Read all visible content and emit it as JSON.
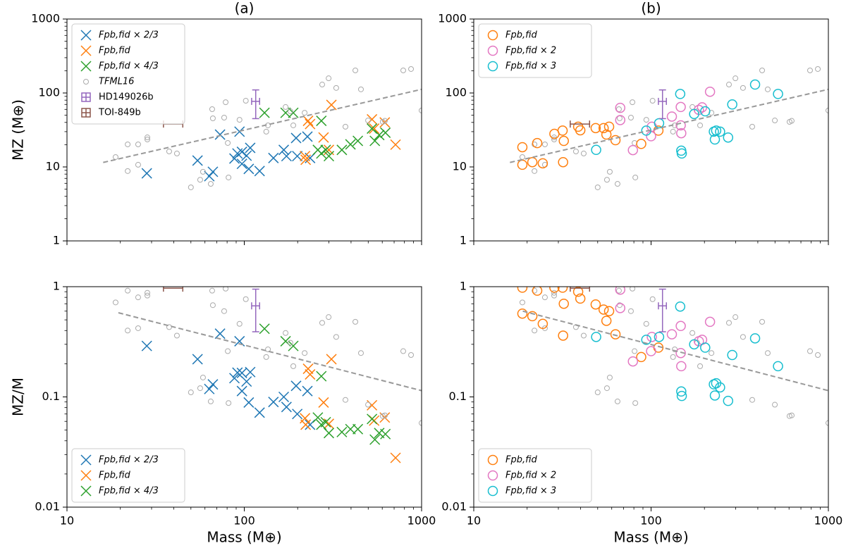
{
  "chart_data": [
    {
      "type": "scatter",
      "title": "(a)",
      "ylabel": "MZ (M⊕)",
      "log_x": true,
      "log_y": true,
      "xlim": [
        10,
        1000
      ],
      "xticks": [
        10,
        100,
        1000
      ],
      "ylim": [
        1,
        1000
      ],
      "yticks": [
        1,
        10,
        100,
        1000
      ],
      "show_xtick_labels": false,
      "legend": "upper left",
      "series": [
        {
          "name": "Fpb,fid × 2/3",
          "color": "#1f77b4",
          "marker": "x",
          "x": [
            28.2,
            54.5,
            63.5,
            66.5,
            73,
            94,
            88,
            91.5,
            97,
            97,
            103,
            108,
            106,
            122,
            146,
            167,
            173,
            196,
            227,
            235,
            199
          ],
          "values": [
            8.2,
            12.2,
            7.5,
            8.6,
            27.4,
            30,
            13,
            15.2,
            16,
            11,
            14.2,
            18.1,
            9.4,
            8.8,
            13.2,
            17,
            14,
            24.6,
            25.7,
            13.2,
            14
          ]
        },
        {
          "name": "Fpb,fid",
          "color": "#ff7f0e",
          "marker": "x",
          "x": [
            220,
            222,
            229,
            235,
            280,
            310,
            300,
            525,
            540,
            620,
            713
          ],
          "values": [
            14,
            12.5,
            42,
            38,
            25,
            69,
            17,
            44,
            33,
            40,
            20
          ]
        },
        {
          "name": "Fpb,fid × 4/3",
          "color": "#2ca02c",
          "marker": "x",
          "x": [
            130,
            171,
            189,
            272,
            260,
            272,
            288,
            300,
            355,
            397,
            437,
            525,
            577,
            625,
            545
          ],
          "values": [
            54,
            54,
            54,
            42,
            17,
            15.2,
            17,
            14,
            17,
            20.2,
            22.5,
            33,
            27,
            29,
            22.5
          ]
        },
        {
          "name": "TFML16",
          "color": "#aaaaaa",
          "marker": "dot",
          "x": [
            18.8,
            22,
            22,
            25.2,
            25.2,
            28.4,
            28.4,
            37.7,
            41.7,
            50,
            56.4,
            58.5,
            64.7,
            65.9,
            66.5,
            77,
            78.5,
            80.7,
            81.5,
            94,
            102,
            133,
            136,
            171,
            182,
            189,
            219,
            275,
            299,
            330,
            372,
            423,
            455,
            499,
            604,
            621,
            788,
            872,
            1000
          ],
          "values": [
            13.6,
            20.2,
            8.8,
            10.7,
            20.2,
            25.1,
            23.5,
            16.2,
            15.2,
            5.3,
            6.7,
            8.6,
            5.9,
            60.4,
            45.4,
            46.4,
            75,
            21.1,
            7.2,
            43.4,
            78.5,
            30,
            36.5,
            64.6,
            56.5,
            36.5,
            54,
            130,
            158,
            117,
            35,
            202,
            112,
            42.5,
            40.7,
            42,
            202,
            211,
            58
          ]
        },
        {
          "name": "HD149026b",
          "color": "#9467bd",
          "marker": "errorbar",
          "x": [
            116
          ],
          "values": [
            77
          ],
          "y_low": [
            45
          ],
          "y_high": [
            110
          ],
          "x_low": [
            110
          ],
          "x_high": [
            122
          ]
        },
        {
          "name": "TOI-849b",
          "color": "#8c564b",
          "marker": "errorbar",
          "x": [
            40
          ],
          "values": [
            38
          ],
          "x_low": [
            35
          ],
          "x_high": [
            45
          ]
        },
        {
          "color": "#999999",
          "marker": "dashed-line",
          "x": [
            16,
            1000
          ],
          "values": [
            11.5,
            112
          ]
        }
      ]
    },
    {
      "type": "scatter",
      "title": "(b)",
      "log_x": true,
      "log_y": true,
      "xlim": [
        10,
        1000
      ],
      "xticks": [
        10,
        100,
        1000
      ],
      "ylim": [
        1,
        1000
      ],
      "yticks": [
        1,
        10,
        100,
        1000
      ],
      "show_xtick_labels": false,
      "legend": "upper left",
      "series": [
        {
          "color": "#aaaaaa",
          "marker": "dot",
          "x": [
            18.8,
            22,
            22,
            25.2,
            25.2,
            28.4,
            28.4,
            37.7,
            41.7,
            50,
            56.4,
            58.5,
            64.7,
            65.9,
            66.5,
            77,
            78.5,
            80.7,
            81.5,
            94,
            102,
            133,
            136,
            171,
            182,
            189,
            219,
            275,
            299,
            330,
            372,
            423,
            455,
            499,
            604,
            621,
            788,
            872,
            1000
          ],
          "values": [
            13.6,
            20.2,
            8.8,
            10.7,
            20.2,
            25.1,
            23.5,
            16.2,
            15.2,
            5.3,
            6.7,
            8.6,
            5.9,
            60.4,
            45.4,
            46.4,
            75,
            21.1,
            7.2,
            43.4,
            78.5,
            30,
            36.5,
            64.6,
            56.5,
            36.5,
            54,
            130,
            158,
            117,
            35,
            202,
            112,
            42.5,
            40.7,
            42,
            202,
            211,
            58
          ]
        },
        {
          "name": "Fpb,fid",
          "color": "#ff7f0e",
          "marker": "circle",
          "x": [
            18.8,
            18.8,
            22.8,
            21.4,
            24.5,
            28.5,
            31.7,
            32.2,
            31.9,
            38.8,
            39.9,
            48.7,
            54,
            56,
            58,
            63,
            88,
            110
          ],
          "values": [
            18.5,
            10.7,
            21,
            11.6,
            11.2,
            28,
            31,
            22.5,
            11.6,
            35,
            31.3,
            33.5,
            33.5,
            27.4,
            35,
            23,
            20.5,
            31
          ]
        },
        {
          "name": "Fpb,fid × 2",
          "color": "#e377c2",
          "marker": "circle",
          "x": [
            67,
            67,
            79,
            100,
            101,
            131,
            147,
            147,
            148,
            186,
            194,
            215
          ],
          "values": [
            63,
            43,
            16.9,
            26,
            35,
            48,
            36.5,
            64.6,
            28.6,
            59,
            64,
            104
          ]
        },
        {
          "name": "Fpb,fid × 3",
          "color": "#17becf",
          "marker": "circle",
          "x": [
            146,
            111,
            94,
            49,
            148,
            149,
            175,
            202,
            226,
            229,
            233,
            245,
            272,
            287,
            386,
            520
          ],
          "values": [
            97,
            39,
            31,
            17,
            16.6,
            15.2,
            52,
            56.5,
            30,
            23.5,
            31,
            30,
            25,
            70,
            130,
            97
          ]
        },
        {
          "color": "#9467bd",
          "marker": "errorbar",
          "x": [
            116
          ],
          "values": [
            77
          ],
          "y_low": [
            45
          ],
          "y_high": [
            110
          ],
          "x_low": [
            110
          ],
          "x_high": [
            122
          ]
        },
        {
          "color": "#8c564b",
          "marker": "errorbar",
          "x": [
            40
          ],
          "values": [
            38
          ],
          "x_low": [
            35
          ],
          "x_high": [
            45
          ]
        },
        {
          "color": "#999999",
          "marker": "dashed-line",
          "x": [
            16,
            1000
          ],
          "values": [
            11.5,
            112
          ]
        }
      ]
    },
    {
      "type": "scatter",
      "ylabel": "MZ/M",
      "xlabel": "Mass (M⊕)",
      "log_x": true,
      "log_y": true,
      "xlim": [
        10,
        1000
      ],
      "xticks": [
        10,
        100,
        1000
      ],
      "ylim": [
        0.01,
        1
      ],
      "yticks": [
        0.01,
        0.1,
        1
      ],
      "legend": "lower left",
      "series": [
        {
          "name": "Fpb,fid × 2/3",
          "color": "#1f77b4",
          "marker": "x",
          "x": [
            28.2,
            54.5,
            63.5,
            66.5,
            73,
            94,
            88,
            91.5,
            97,
            97,
            103,
            108,
            106,
            122,
            146,
            167,
            173,
            196,
            227,
            235,
            199
          ],
          "values": [
            0.29,
            0.22,
            0.118,
            0.13,
            0.375,
            0.32,
            0.148,
            0.166,
            0.165,
            0.113,
            0.138,
            0.168,
            0.089,
            0.072,
            0.09,
            0.1,
            0.081,
            0.126,
            0.113,
            0.056,
            0.07
          ]
        },
        {
          "name": "Fpb,fid",
          "color": "#ff7f0e",
          "marker": "x",
          "x": [
            220,
            222,
            229,
            235,
            280,
            310,
            300,
            525,
            540,
            620,
            713
          ],
          "values": [
            0.064,
            0.056,
            0.18,
            0.16,
            0.089,
            0.22,
            0.057,
            0.084,
            0.061,
            0.065,
            0.028
          ]
        },
        {
          "name": "Fpb,fid × 4/3",
          "color": "#2ca02c",
          "marker": "x",
          "x": [
            130,
            171,
            189,
            272,
            260,
            272,
            288,
            300,
            355,
            397,
            437,
            525,
            577,
            625,
            545
          ],
          "values": [
            0.415,
            0.32,
            0.29,
            0.154,
            0.065,
            0.056,
            0.059,
            0.047,
            0.048,
            0.051,
            0.051,
            0.063,
            0.047,
            0.046,
            0.041
          ]
        },
        {
          "color": "#aaaaaa",
          "marker": "dot",
          "x": [
            18.8,
            22,
            22,
            25.2,
            25.2,
            28.4,
            28.4,
            37.7,
            41.7,
            50,
            56.4,
            58.5,
            64.7,
            65.9,
            66.5,
            77,
            78.5,
            80.7,
            81.5,
            94,
            102,
            133,
            136,
            171,
            182,
            189,
            219,
            275,
            299,
            330,
            372,
            423,
            455,
            499,
            604,
            621,
            788,
            872,
            1000
          ],
          "values": [
            0.72,
            0.92,
            0.4,
            0.42,
            0.8,
            0.88,
            0.83,
            0.43,
            0.36,
            0.11,
            0.12,
            0.15,
            0.091,
            0.92,
            0.68,
            0.6,
            0.96,
            0.26,
            0.088,
            0.46,
            0.77,
            0.23,
            0.27,
            0.38,
            0.31,
            0.19,
            0.25,
            0.47,
            0.53,
            0.35,
            0.094,
            0.48,
            0.25,
            0.085,
            0.067,
            0.068,
            0.26,
            0.24,
            0.058
          ]
        },
        {
          "color": "#9467bd",
          "marker": "errorbar",
          "x": [
            116
          ],
          "values": [
            0.67
          ],
          "y_low": [
            0.39
          ],
          "y_high": [
            0.95
          ],
          "x_low": [
            110
          ],
          "x_high": [
            122
          ]
        },
        {
          "color": "#8c564b",
          "marker": "errorbar",
          "x": [
            40
          ],
          "values": [
            0.97
          ],
          "x_low": [
            35
          ],
          "x_high": [
            45
          ]
        },
        {
          "color": "#999999",
          "marker": "dashed-line",
          "x": [
            19.5,
            1000
          ],
          "values": [
            0.58,
            0.114
          ]
        }
      ]
    },
    {
      "type": "scatter",
      "xlabel": "Mass (M⊕)",
      "log_x": true,
      "log_y": true,
      "xlim": [
        10,
        1000
      ],
      "xticks": [
        10,
        100,
        1000
      ],
      "ylim": [
        0.01,
        1
      ],
      "yticks": [
        0.01,
        0.1,
        1
      ],
      "legend": "lower left",
      "series": [
        {
          "color": "#aaaaaa",
          "marker": "dot",
          "x": [
            18.8,
            22,
            22,
            25.2,
            25.2,
            28.4,
            28.4,
            37.7,
            41.7,
            50,
            56.4,
            58.5,
            64.7,
            65.9,
            66.5,
            77,
            78.5,
            80.7,
            81.5,
            94,
            102,
            133,
            136,
            171,
            182,
            189,
            219,
            275,
            299,
            330,
            372,
            423,
            455,
            499,
            604,
            621,
            788,
            872,
            1000
          ],
          "values": [
            0.72,
            0.92,
            0.4,
            0.42,
            0.8,
            0.88,
            0.83,
            0.43,
            0.36,
            0.11,
            0.12,
            0.15,
            0.091,
            0.92,
            0.68,
            0.6,
            0.96,
            0.26,
            0.088,
            0.46,
            0.77,
            0.23,
            0.27,
            0.38,
            0.31,
            0.19,
            0.25,
            0.47,
            0.53,
            0.35,
            0.094,
            0.48,
            0.25,
            0.085,
            0.067,
            0.068,
            0.26,
            0.24,
            0.058
          ]
        },
        {
          "name": "Fpb,fid",
          "color": "#ff7f0e",
          "marker": "circle",
          "x": [
            18.8,
            18.8,
            22.8,
            21.4,
            24.5,
            28.5,
            31.7,
            32.2,
            31.9,
            38.8,
            39.9,
            48.7,
            54,
            56,
            58,
            63,
            88,
            110
          ],
          "values": [
            0.98,
            0.57,
            0.92,
            0.54,
            0.46,
            0.98,
            0.98,
            0.7,
            0.36,
            0.9,
            0.78,
            0.69,
            0.62,
            0.49,
            0.6,
            0.37,
            0.23,
            0.28
          ]
        },
        {
          "name": "Fpb,fid × 2",
          "color": "#e377c2",
          "marker": "circle",
          "x": [
            67,
            67,
            79,
            100,
            101,
            131,
            147,
            147,
            148,
            186,
            194,
            215
          ],
          "values": [
            0.94,
            0.64,
            0.21,
            0.26,
            0.35,
            0.37,
            0.25,
            0.44,
            0.19,
            0.32,
            0.33,
            0.48
          ]
        },
        {
          "name": "Fpb,fid × 3",
          "color": "#17becf",
          "marker": "circle",
          "x": [
            146,
            111,
            94,
            49,
            148,
            149,
            175,
            202,
            226,
            229,
            233,
            245,
            272,
            287,
            386,
            520
          ],
          "values": [
            0.66,
            0.35,
            0.33,
            0.35,
            0.112,
            0.102,
            0.3,
            0.28,
            0.13,
            0.103,
            0.133,
            0.122,
            0.092,
            0.24,
            0.34,
            0.19
          ]
        },
        {
          "color": "#9467bd",
          "marker": "errorbar",
          "x": [
            116
          ],
          "values": [
            0.67
          ],
          "y_low": [
            0.39
          ],
          "y_high": [
            0.95
          ],
          "x_low": [
            110
          ],
          "x_high": [
            122
          ]
        },
        {
          "color": "#8c564b",
          "marker": "errorbar",
          "x": [
            40
          ],
          "values": [
            0.97
          ],
          "x_low": [
            35
          ],
          "x_high": [
            45
          ]
        },
        {
          "color": "#999999",
          "marker": "dashed-line",
          "x": [
            18.9,
            1000
          ],
          "values": [
            0.6,
            0.114
          ]
        }
      ]
    }
  ]
}
